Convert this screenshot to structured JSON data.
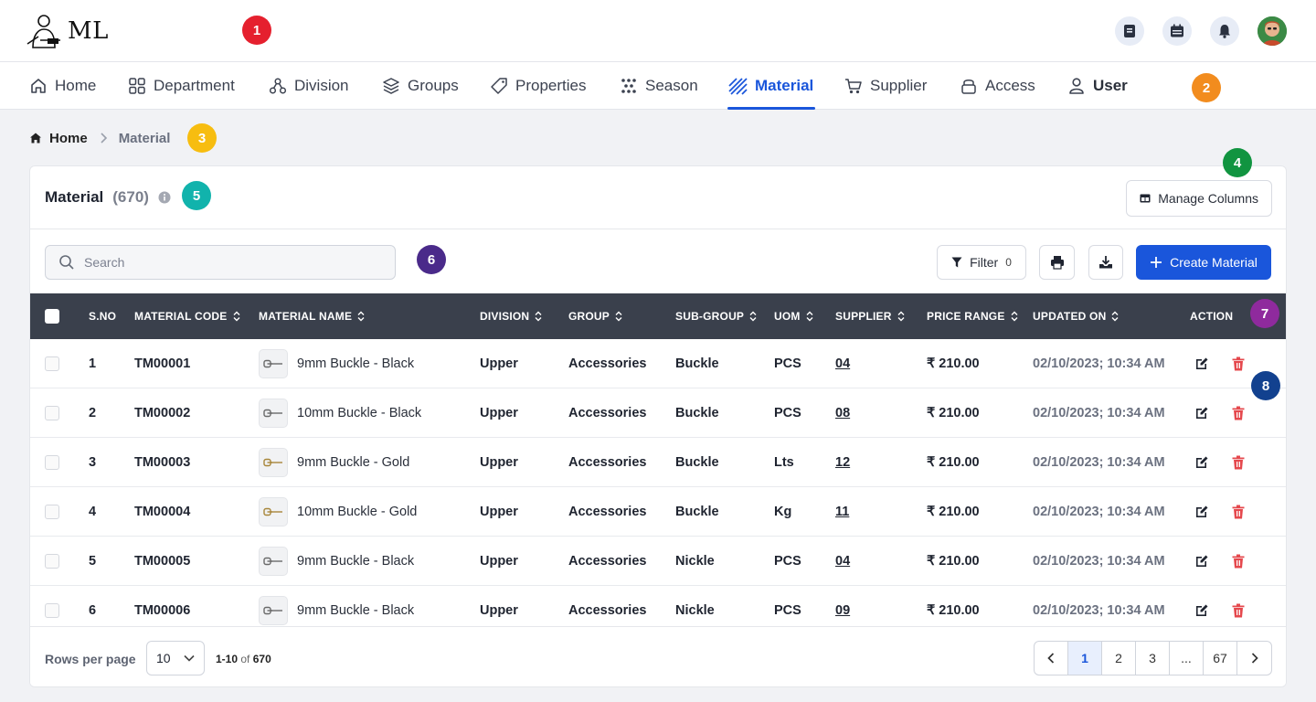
{
  "brand": {
    "logo_text": "ML"
  },
  "nav": {
    "items": [
      {
        "label": "Home",
        "icon": "home-icon"
      },
      {
        "label": "Department",
        "icon": "grid-icon"
      },
      {
        "label": "Division",
        "icon": "hierarchy-icon"
      },
      {
        "label": "Groups",
        "icon": "layers-icon"
      },
      {
        "label": "Properties",
        "icon": "tag-icon"
      },
      {
        "label": "Season",
        "icon": "dots-icon"
      },
      {
        "label": "Material",
        "icon": "material-icon"
      },
      {
        "label": "Supplier",
        "icon": "cart-icon"
      },
      {
        "label": "Access",
        "icon": "access-icon"
      },
      {
        "label": "User",
        "icon": "user-icon"
      }
    ],
    "active": "Material"
  },
  "markers": [
    "1",
    "2",
    "3",
    "4",
    "5",
    "6",
    "7",
    "8"
  ],
  "breadcrumb": {
    "home": "Home",
    "current": "Material"
  },
  "card": {
    "title": "Material",
    "count": "(670)",
    "manage_columns": "Manage Columns",
    "search_placeholder": "Search",
    "filter_label": "Filter",
    "filter_count": "0",
    "create_label": "Create Material"
  },
  "table": {
    "headers": {
      "sno": "S.NO",
      "code": "MATERIAL CODE",
      "name": "MATERIAL NAME",
      "division": "DIVISION",
      "group": "GROUP",
      "subgroup": "SUB-GROUP",
      "uom": "UOM",
      "supplier": "SUPPLIER",
      "price": "PRICE RANGE",
      "updated": "UPDATED ON",
      "action": "ACTION"
    },
    "rows": [
      {
        "sno": "1",
        "code": "TM00001",
        "name": "9mm Buckle - Black",
        "division": "Upper",
        "group": "Accessories",
        "subgroup": "Buckle",
        "uom": "PCS",
        "supplier": "04",
        "price": "₹ 210.00",
        "updated": "02/10/2023; 10:34 AM",
        "thumb_color": "#6a6a6a"
      },
      {
        "sno": "2",
        "code": "TM00002",
        "name": "10mm Buckle - Black",
        "division": "Upper",
        "group": "Accessories",
        "subgroup": "Buckle",
        "uom": "PCS",
        "supplier": "08",
        "price": "₹ 210.00",
        "updated": "02/10/2023; 10:34 AM",
        "thumb_color": "#6a6a6a"
      },
      {
        "sno": "3",
        "code": "TM00003",
        "name": "9mm Buckle - Gold",
        "division": "Upper",
        "group": "Accessories",
        "subgroup": "Buckle",
        "uom": "Lts",
        "supplier": "12",
        "price": "₹ 210.00",
        "updated": "02/10/2023; 10:34 AM",
        "thumb_color": "#a8863a"
      },
      {
        "sno": "4",
        "code": "TM00004",
        "name": "10mm Buckle - Gold",
        "division": "Upper",
        "group": "Accessories",
        "subgroup": "Buckle",
        "uom": "Kg",
        "supplier": "11",
        "price": "₹ 210.00",
        "updated": "02/10/2023; 10:34 AM",
        "thumb_color": "#a8863a"
      },
      {
        "sno": "5",
        "code": "TM00005",
        "name": "9mm Buckle - Black",
        "division": "Upper",
        "group": "Accessories",
        "subgroup": "Nickle",
        "uom": "PCS",
        "supplier": "04",
        "price": "₹ 210.00",
        "updated": "02/10/2023; 10:34 AM",
        "thumb_color": "#6a6a6a"
      },
      {
        "sno": "6",
        "code": "TM00006",
        "name": "9mm Buckle - Black",
        "division": "Upper",
        "group": "Accessories",
        "subgroup": "Nickle",
        "uom": "PCS",
        "supplier": "09",
        "price": "₹ 210.00",
        "updated": "02/10/2023; 10:34 AM",
        "thumb_color": "#6a6a6a"
      }
    ]
  },
  "footer": {
    "rows_per_page_label": "Rows per page",
    "rows_per_page_value": "10",
    "range_start": "1-10",
    "range_of": "of",
    "range_total": "670",
    "pages": [
      "1",
      "2",
      "3",
      "...",
      "67"
    ]
  }
}
